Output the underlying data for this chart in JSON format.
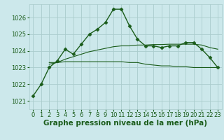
{
  "title": "Graphe pression niveau de la mer (hPa)",
  "bg_color": "#cce8eb",
  "grid_color": "#aacccc",
  "line1_color": "#1a5c1a",
  "line2_color": "#1a5c1a",
  "line3_color": "#1a5c1a",
  "ylim": [
    1020.5,
    1026.8
  ],
  "xlim": [
    -0.5,
    23.5
  ],
  "yticks": [
    1021,
    1022,
    1023,
    1024,
    1025,
    1026
  ],
  "xticks": [
    0,
    1,
    2,
    3,
    4,
    5,
    6,
    7,
    8,
    9,
    10,
    11,
    12,
    13,
    14,
    15,
    16,
    17,
    18,
    19,
    20,
    21,
    22,
    23
  ],
  "line1_x": [
    0,
    1,
    2,
    3,
    4,
    5,
    6,
    7,
    8,
    9,
    10,
    11,
    12,
    13,
    14,
    15,
    16,
    17,
    18,
    19,
    20,
    21,
    22,
    23
  ],
  "line1_y": [
    1021.3,
    1022.0,
    1023.0,
    1023.4,
    1024.1,
    1023.8,
    1024.4,
    1025.0,
    1025.3,
    1025.7,
    1026.5,
    1026.5,
    1025.5,
    1024.7,
    1024.3,
    1024.3,
    1024.2,
    1024.3,
    1024.3,
    1024.5,
    1024.5,
    1024.1,
    1023.6,
    1023.0
  ],
  "line2_x": [
    2,
    3,
    4,
    5,
    6,
    7,
    8,
    9,
    10,
    11,
    12,
    13,
    14,
    15,
    16,
    17,
    18,
    19,
    20,
    21,
    22,
    23
  ],
  "line2_y": [
    1023.3,
    1023.3,
    1023.35,
    1023.35,
    1023.35,
    1023.35,
    1023.35,
    1023.35,
    1023.35,
    1023.35,
    1023.3,
    1023.3,
    1023.2,
    1023.15,
    1023.1,
    1023.1,
    1023.05,
    1023.05,
    1023.0,
    1023.0,
    1023.0,
    1023.0
  ],
  "line3_x": [
    2,
    3,
    4,
    5,
    6,
    7,
    8,
    9,
    10,
    11,
    12,
    13,
    14,
    15,
    16,
    17,
    18,
    19,
    20,
    21,
    22,
    23
  ],
  "line3_y": [
    1023.2,
    1023.3,
    1023.5,
    1023.65,
    1023.8,
    1023.95,
    1024.05,
    1024.15,
    1024.25,
    1024.3,
    1024.3,
    1024.35,
    1024.35,
    1024.38,
    1024.38,
    1024.4,
    1024.4,
    1024.4,
    1024.4,
    1024.35,
    1024.2,
    1024.1
  ],
  "title_color": "#1a5c1a",
  "title_fontsize": 7.5,
  "tick_fontsize": 6,
  "marker": "D",
  "markersize": 2.5,
  "linewidth1": 1.0,
  "linewidth2": 0.8,
  "linewidth3": 0.8
}
